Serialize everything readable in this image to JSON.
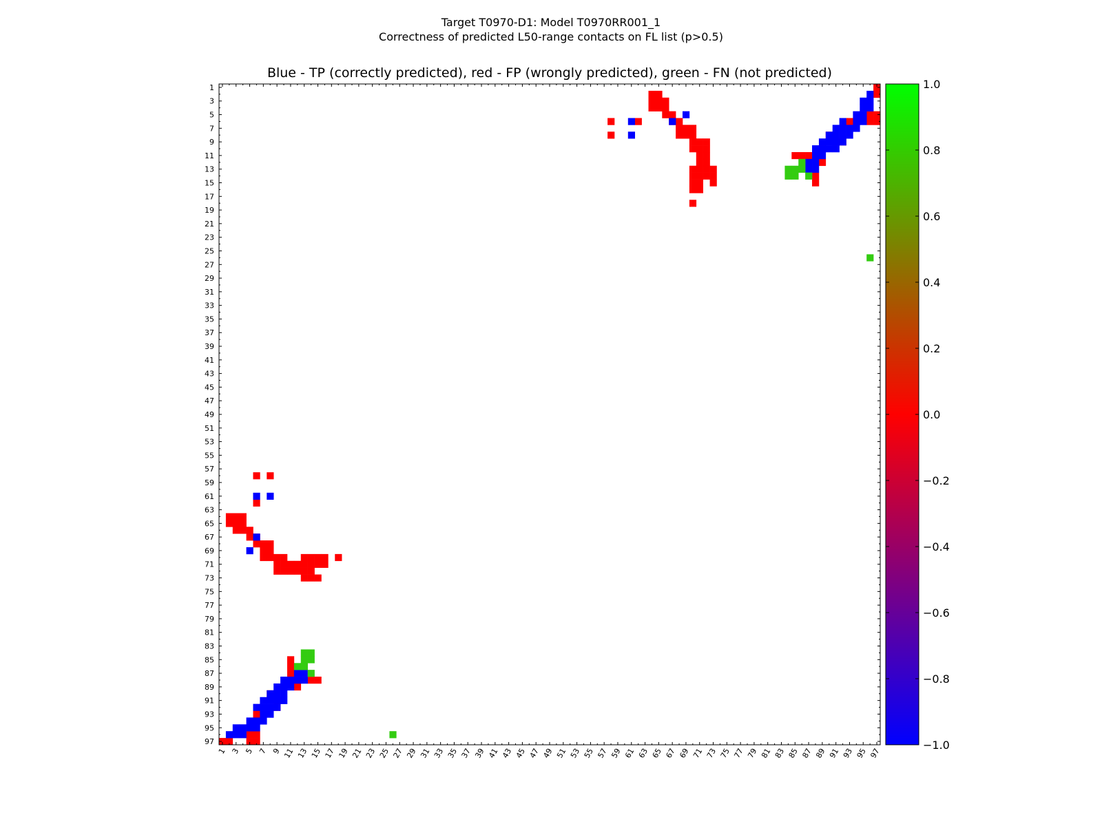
{
  "chart_data": {
    "type": "heatmap",
    "figure_title": "Target T0970-D1: Model T0970RR001_1",
    "subtitle": "Correctness of predicted L50-range contacts on FL list (p>0.5)",
    "title": "Blue - TP (correctly predicted), red - FP (wrongly predicted), green - FN (not predicted)",
    "n": 97,
    "x_range": [
      1,
      97
    ],
    "y_range": [
      1,
      97
    ],
    "x_tick_labels": [
      "1",
      "3",
      "5",
      "7",
      "9",
      "11",
      "13",
      "15",
      "17",
      "19",
      "21",
      "23",
      "25",
      "27",
      "29",
      "31",
      "33",
      "35",
      "37",
      "39",
      "41",
      "43",
      "45",
      "47",
      "49",
      "51",
      "53",
      "55",
      "57",
      "59",
      "61",
      "63",
      "65",
      "67",
      "69",
      "71",
      "73",
      "75",
      "77",
      "79",
      "81",
      "83",
      "85",
      "87",
      "89",
      "91",
      "93",
      "95",
      "97"
    ],
    "y_tick_labels": [
      "1",
      "3",
      "5",
      "7",
      "9",
      "11",
      "13",
      "15",
      "17",
      "19",
      "21",
      "23",
      "25",
      "27",
      "29",
      "31",
      "33",
      "35",
      "37",
      "39",
      "41",
      "43",
      "45",
      "47",
      "49",
      "51",
      "53",
      "55",
      "57",
      "59",
      "61",
      "63",
      "65",
      "67",
      "69",
      "71",
      "73",
      "75",
      "77",
      "79",
      "81",
      "83",
      "85",
      "87",
      "89",
      "91",
      "93",
      "95",
      "97"
    ],
    "colorbar": {
      "range": [
        -1.0,
        1.0
      ],
      "tick_labels": [
        "1.0",
        "0.8",
        "0.6",
        "0.4",
        "0.2",
        "0.0",
        "−0.2",
        "−0.4",
        "−0.6",
        "−0.8",
        "−1.0"
      ],
      "colors": [
        "#0000ff",
        "#ff0000",
        "#00ff00"
      ]
    },
    "legend": {
      "tp": "-1.0 (blue)",
      "fp": "0.0 (red)",
      "fn": "1.0 (green)"
    },
    "colors": {
      "tp": "#0000ff",
      "fp": "#ff0000",
      "fn": "#33cc11"
    },
    "cells_upper": {
      "fp": [
        [
          1,
          97
        ],
        [
          2,
          97
        ],
        [
          2,
          64
        ],
        [
          2,
          65
        ],
        [
          3,
          64
        ],
        [
          3,
          65
        ],
        [
          3,
          66
        ],
        [
          4,
          64
        ],
        [
          4,
          65
        ],
        [
          4,
          66
        ],
        [
          5,
          66
        ],
        [
          5,
          67
        ],
        [
          5,
          96
        ],
        [
          5,
          97
        ],
        [
          6,
          67
        ],
        [
          6,
          68
        ],
        [
          6,
          58
        ],
        [
          6,
          62
        ],
        [
          6,
          93
        ],
        [
          6,
          96
        ],
        [
          6,
          97
        ],
        [
          7,
          68
        ],
        [
          7,
          69
        ],
        [
          7,
          70
        ],
        [
          8,
          68
        ],
        [
          8,
          69
        ],
        [
          8,
          70
        ],
        [
          8,
          58
        ],
        [
          8,
          90
        ],
        [
          9,
          70
        ],
        [
          9,
          71
        ],
        [
          9,
          72
        ],
        [
          9,
          91
        ],
        [
          9,
          92
        ],
        [
          10,
          70
        ],
        [
          10,
          71
        ],
        [
          10,
          72
        ],
        [
          10,
          89
        ],
        [
          11,
          71
        ],
        [
          11,
          72
        ],
        [
          11,
          85
        ],
        [
          11,
          86
        ],
        [
          11,
          87
        ],
        [
          12,
          71
        ],
        [
          12,
          72
        ],
        [
          12,
          89
        ],
        [
          13,
          70
        ],
        [
          13,
          71
        ],
        [
          13,
          72
        ],
        [
          13,
          73
        ],
        [
          14,
          70
        ],
        [
          14,
          71
        ],
        [
          14,
          72
        ],
        [
          14,
          73
        ],
        [
          14,
          88
        ],
        [
          15,
          70
        ],
        [
          15,
          71
        ],
        [
          15,
          73
        ],
        [
          15,
          88
        ],
        [
          16,
          70
        ],
        [
          16,
          71
        ],
        [
          18,
          70
        ]
      ],
      "tp": [
        [
          2,
          96
        ],
        [
          3,
          95
        ],
        [
          3,
          96
        ],
        [
          4,
          95
        ],
        [
          4,
          96
        ],
        [
          5,
          69
        ],
        [
          5,
          94
        ],
        [
          5,
          95
        ],
        [
          6,
          67
        ],
        [
          6,
          61
        ],
        [
          6,
          92
        ],
        [
          6,
          94
        ],
        [
          6,
          95
        ],
        [
          7,
          91
        ],
        [
          7,
          92
        ],
        [
          7,
          93
        ],
        [
          7,
          94
        ],
        [
          8,
          61
        ],
        [
          8,
          90
        ],
        [
          8,
          91
        ],
        [
          8,
          92
        ],
        [
          8,
          93
        ],
        [
          9,
          89
        ],
        [
          9,
          90
        ],
        [
          9,
          91
        ],
        [
          9,
          92
        ],
        [
          10,
          88
        ],
        [
          10,
          89
        ],
        [
          10,
          90
        ],
        [
          10,
          91
        ],
        [
          11,
          88
        ],
        [
          11,
          89
        ],
        [
          12,
          87
        ],
        [
          12,
          88
        ],
        [
          13,
          87
        ],
        [
          13,
          88
        ]
      ],
      "fn": [
        [
          12,
          86
        ],
        [
          13,
          84
        ],
        [
          13,
          85
        ],
        [
          13,
          86
        ],
        [
          14,
          84
        ],
        [
          14,
          85
        ],
        [
          14,
          87
        ],
        [
          26,
          96
        ]
      ]
    }
  }
}
